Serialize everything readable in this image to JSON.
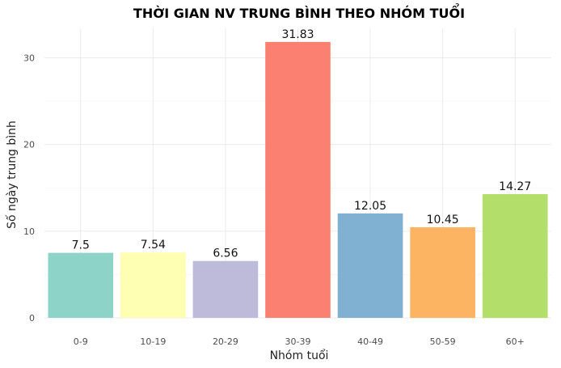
{
  "chart_data": {
    "type": "bar",
    "title": "THỜI GIAN NV TRUNG BÌNH THEO NHÓM TUỔI",
    "xlabel": "Nhóm tuổi",
    "ylabel": "Số ngày trung bình",
    "categories": [
      "0-9",
      "10-19",
      "20-29",
      "30-39",
      "40-49",
      "50-59",
      "60+"
    ],
    "values": [
      7.5,
      7.54,
      6.56,
      31.83,
      12.05,
      10.45,
      14.27
    ],
    "value_labels": [
      "7.5",
      "7.54",
      "6.56",
      "31.83",
      "12.05",
      "10.45",
      "14.27"
    ],
    "colors": [
      "#8DD3C7",
      "#FFFFB3",
      "#BEBADA",
      "#FB8072",
      "#80B1D3",
      "#FDB462",
      "#B3DE69"
    ],
    "ylim": [
      0,
      33.4
    ],
    "yticks": [
      0,
      10,
      20,
      30
    ],
    "ytick_labels": [
      "0",
      "10",
      "20",
      "30"
    ],
    "grid": true,
    "legend": "none"
  }
}
